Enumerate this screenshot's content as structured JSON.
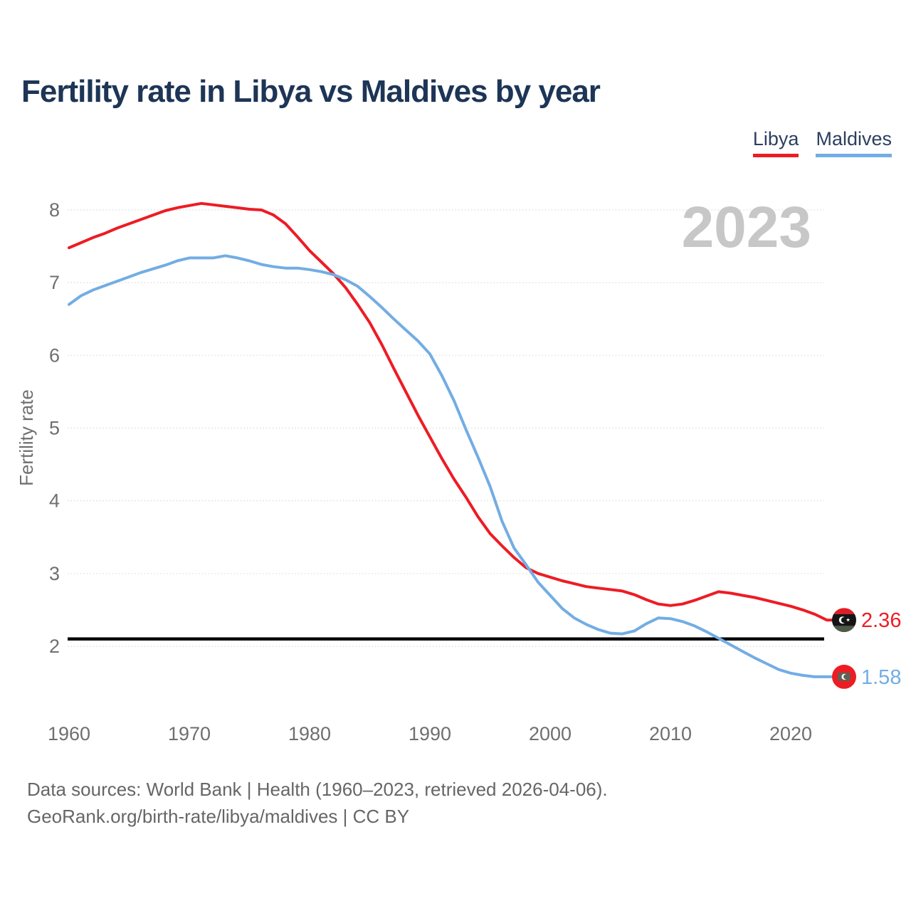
{
  "title": "Fertility rate in Libya vs Maldives by year",
  "watermark": "2023",
  "legend": {
    "libya": {
      "label": "Libya",
      "color": "#ed1c24"
    },
    "maldives": {
      "label": "Maldives",
      "color": "#73ade3"
    }
  },
  "y_axis": {
    "label": "Fertility rate",
    "ticks": [
      2,
      3,
      4,
      5,
      6,
      7,
      8
    ]
  },
  "x_axis": {
    "ticks": [
      1960,
      1970,
      1980,
      1990,
      2000,
      2010,
      2020
    ]
  },
  "reference_line": {
    "value": 2.1,
    "color": "#000000"
  },
  "end_labels": {
    "libya": {
      "value": "2.36",
      "flag": "libya-flag"
    },
    "maldives": {
      "value": "1.58",
      "flag": "maldives-flag"
    }
  },
  "footer": {
    "line1": "Data sources: World Bank | Health (1960–2023, retrieved 2026-04-06).",
    "line2": "GeoRank.org/birth-rate/libya/maldives | CC BY"
  },
  "chart_data": {
    "type": "line",
    "title": "Fertility rate in Libya vs Maldives by year",
    "xlabel": "",
    "ylabel": "Fertility rate",
    "xlim": [
      1960,
      2023
    ],
    "ylim": [
      1.4,
      8.4
    ],
    "grid": "horizontal-dotted",
    "legend_position": "top-right",
    "annotation_year": "2023",
    "reference_line": 2.1,
    "x": [
      1960,
      1961,
      1962,
      1963,
      1964,
      1965,
      1966,
      1967,
      1968,
      1969,
      1970,
      1971,
      1972,
      1973,
      1974,
      1975,
      1976,
      1977,
      1978,
      1979,
      1980,
      1981,
      1982,
      1983,
      1984,
      1985,
      1986,
      1987,
      1988,
      1989,
      1990,
      1991,
      1992,
      1993,
      1994,
      1995,
      1996,
      1997,
      1998,
      1999,
      2000,
      2001,
      2002,
      2003,
      2004,
      2005,
      2006,
      2007,
      2008,
      2009,
      2010,
      2011,
      2012,
      2013,
      2014,
      2015,
      2016,
      2017,
      2018,
      2019,
      2020,
      2021,
      2022,
      2023
    ],
    "series": [
      {
        "name": "Libya",
        "color": "#ed1c24",
        "values": [
          7.48,
          7.55,
          7.62,
          7.68,
          7.75,
          7.81,
          7.87,
          7.93,
          7.99,
          8.03,
          8.06,
          8.09,
          8.07,
          8.05,
          8.03,
          8.01,
          8.0,
          7.93,
          7.81,
          7.63,
          7.44,
          7.28,
          7.12,
          6.93,
          6.7,
          6.45,
          6.15,
          5.82,
          5.5,
          5.18,
          4.88,
          4.58,
          4.3,
          4.05,
          3.78,
          3.55,
          3.38,
          3.22,
          3.08,
          3.0,
          2.95,
          2.9,
          2.86,
          2.82,
          2.8,
          2.78,
          2.76,
          2.71,
          2.64,
          2.58,
          2.56,
          2.58,
          2.63,
          2.69,
          2.75,
          2.73,
          2.7,
          2.67,
          2.63,
          2.59,
          2.55,
          2.5,
          2.44,
          2.36
        ]
      },
      {
        "name": "Maldives",
        "color": "#73ade3",
        "values": [
          6.7,
          6.82,
          6.9,
          6.96,
          7.02,
          7.08,
          7.14,
          7.19,
          7.24,
          7.3,
          7.34,
          7.34,
          7.34,
          7.37,
          7.34,
          7.3,
          7.25,
          7.22,
          7.2,
          7.2,
          7.18,
          7.15,
          7.11,
          7.04,
          6.95,
          6.81,
          6.66,
          6.5,
          6.35,
          6.2,
          6.02,
          5.72,
          5.38,
          4.98,
          4.6,
          4.2,
          3.72,
          3.35,
          3.12,
          2.88,
          2.7,
          2.52,
          2.39,
          2.3,
          2.23,
          2.18,
          2.17,
          2.21,
          2.31,
          2.39,
          2.38,
          2.34,
          2.28,
          2.2,
          2.11,
          2.02,
          1.93,
          1.84,
          1.76,
          1.68,
          1.63,
          1.6,
          1.58,
          1.58
        ]
      }
    ]
  }
}
